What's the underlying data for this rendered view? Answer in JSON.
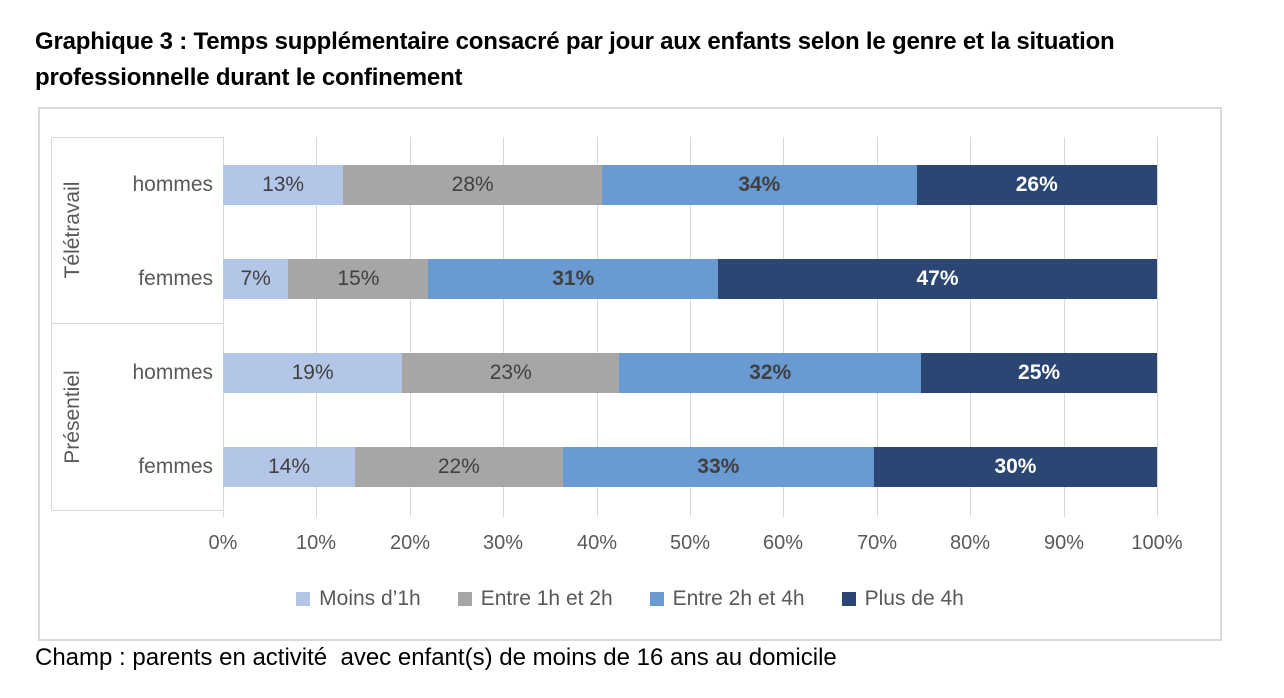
{
  "title": "Graphique 3 : Temps supplémentaire consacré par jour aux enfants selon le genre et la situation professionnelle durant le confinement",
  "footnote": "Champ : parents en activité  avec enfant(s) de moins de 16 ans au domicile",
  "colors": {
    "grid": "#d9d9d9",
    "axis_text": "#595959",
    "value_label_dark": "#404040",
    "value_label_light": "#ffffff"
  },
  "chart_data": {
    "type": "bar",
    "orientation": "horizontal",
    "stacked_percent": true,
    "title": "Temps supplémentaire consacré par jour aux enfants selon le genre et la situation professionnelle durant le confinement",
    "xlabel": "",
    "ylabel": "",
    "xlim": [
      0,
      100
    ],
    "grid": true,
    "legend_position": "bottom",
    "x_ticks": [
      "0%",
      "10%",
      "20%",
      "30%",
      "40%",
      "50%",
      "60%",
      "70%",
      "80%",
      "90%",
      "100%"
    ],
    "groups": [
      {
        "label": "Télétravail",
        "rows": [
          0,
          1
        ]
      },
      {
        "label": "Présentiel",
        "rows": [
          2,
          3
        ]
      }
    ],
    "rows": [
      {
        "group": "Télétravail",
        "label": "hommes",
        "values": [
          13,
          28,
          34,
          26
        ]
      },
      {
        "group": "Télétravail",
        "label": "femmes",
        "values": [
          7,
          15,
          31,
          47
        ]
      },
      {
        "group": "Présentiel",
        "label": "hommes",
        "values": [
          19,
          23,
          32,
          25
        ]
      },
      {
        "group": "Présentiel",
        "label": "femmes",
        "values": [
          14,
          22,
          33,
          30
        ]
      }
    ],
    "series": [
      {
        "name": "Moins d’1h",
        "color": "#b4c6e7",
        "label_style": "normal-dark"
      },
      {
        "name": "Entre 1h et 2h",
        "color": "#a6a6a6",
        "label_style": "normal-dark"
      },
      {
        "name": "Entre 2h et 4h",
        "color": "#699ad1",
        "label_style": "bold-dark"
      },
      {
        "name": "Plus de 4h",
        "color": "#2b4672",
        "label_style": "bold-white"
      }
    ]
  }
}
